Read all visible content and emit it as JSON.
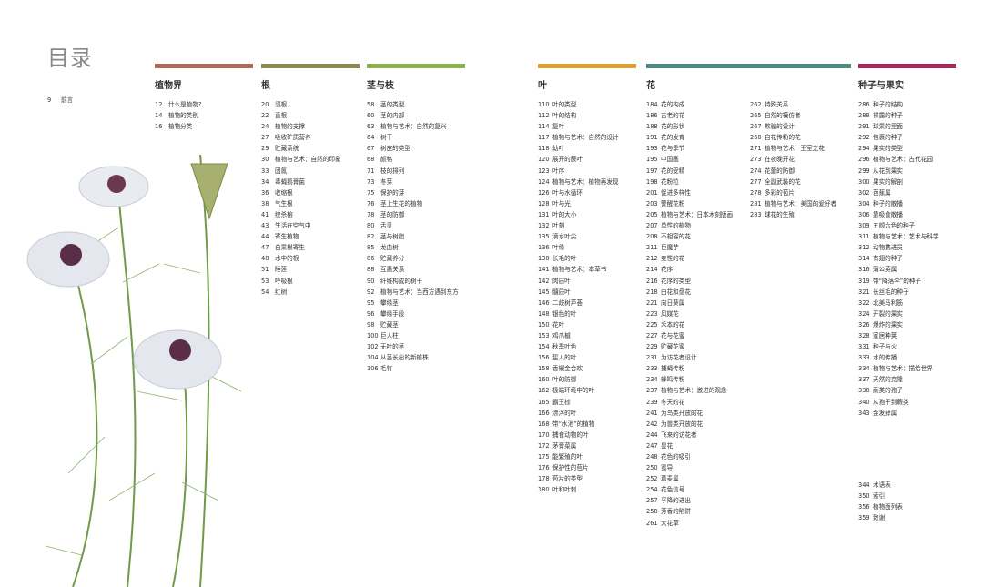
{
  "title": "目录",
  "preface": [
    {
      "n": "9",
      "t": "前言"
    }
  ],
  "sections": [
    {
      "key": "kingdom",
      "title": "植物界",
      "color": "#b06a58",
      "entries": [
        [
          "12",
          "什么是植物?"
        ],
        [
          "14",
          "植物的类别"
        ],
        [
          "16",
          "植物分类"
        ]
      ]
    },
    {
      "key": "roots",
      "title": "根",
      "color": "#8a8a4e",
      "entries": [
        [
          "20",
          "须根"
        ],
        [
          "22",
          "直根"
        ],
        [
          "24",
          "植物的支撑"
        ],
        [
          "27",
          "吸收矿质营养"
        ],
        [
          "29",
          "贮藏系统"
        ],
        [
          "30",
          "植物与艺术：自然的印象"
        ],
        [
          "33",
          "固氮"
        ],
        [
          "34",
          "毒蝇鹅膏菌"
        ],
        [
          "36",
          "收缩根"
        ],
        [
          "38",
          "气生根"
        ],
        [
          "41",
          "绞杀榕"
        ],
        [
          "43",
          "生活在空气中"
        ],
        [
          "44",
          "寄生植物"
        ],
        [
          "47",
          "白果槲寄生"
        ],
        [
          "48",
          "水中的根"
        ],
        [
          "51",
          "睡莲"
        ],
        [
          "53",
          "呼吸根"
        ],
        [
          "54",
          "红树"
        ]
      ]
    },
    {
      "key": "stems",
      "title": "茎与枝",
      "color": "#8cb24a",
      "entries": [
        [
          "58",
          "茎的类型"
        ],
        [
          "60",
          "茎的内部"
        ],
        [
          "63",
          "植物与艺术：自然的复兴"
        ],
        [
          "64",
          "树干"
        ],
        [
          "67",
          "树皮的类型"
        ],
        [
          "68",
          "颜格"
        ],
        [
          "71",
          "枝的排列"
        ],
        [
          "73",
          "冬芽"
        ],
        [
          "75",
          "保护的芽"
        ],
        [
          "76",
          "茎上生花的植物"
        ],
        [
          "78",
          "茎的防御"
        ],
        [
          "80",
          "舌贝"
        ],
        [
          "82",
          "茎与树脂"
        ],
        [
          "85",
          "龙血树"
        ],
        [
          "86",
          "贮藏养分"
        ],
        [
          "88",
          "互惠关系"
        ],
        [
          "90",
          "纤维构成的树干"
        ],
        [
          "92",
          "植物与艺术：当西方遇到东方"
        ],
        [
          "95",
          "攀缘茎"
        ],
        [
          "96",
          "攀缘手段"
        ],
        [
          "98",
          "贮藏茎"
        ],
        [
          "100",
          "巨人柱"
        ],
        [
          "102",
          "无叶的茎"
        ],
        [
          "104",
          "从茎长出的新植株"
        ],
        [
          "106",
          "毛竹"
        ]
      ]
    },
    {
      "key": "leaves",
      "title": "叶",
      "color": "#e0a030",
      "entries": [
        [
          "110",
          "叶的类型"
        ],
        [
          "112",
          "叶的结构"
        ],
        [
          "114",
          "复叶"
        ],
        [
          "117",
          "植物与艺术：自然的设计"
        ],
        [
          "118",
          "幼叶"
        ],
        [
          "120",
          "展开的蕨叶"
        ],
        [
          "123",
          "叶序"
        ],
        [
          "124",
          "植物与艺术：植物再发现"
        ],
        [
          "126",
          "叶与水循环"
        ],
        [
          "128",
          "叶与光"
        ],
        [
          "131",
          "叶的大小"
        ],
        [
          "132",
          "叶刻"
        ],
        [
          "135",
          "滴水叶尖"
        ],
        [
          "136",
          "叶缘"
        ],
        [
          "138",
          "长毛的叶"
        ],
        [
          "141",
          "植物与艺术：本草书"
        ],
        [
          "142",
          "肉质叶"
        ],
        [
          "145",
          "髓质叶"
        ],
        [
          "146",
          "二歧树芦荟"
        ],
        [
          "148",
          "银色的叶"
        ],
        [
          "150",
          "花叶"
        ],
        [
          "153",
          "鸡爪槭"
        ],
        [
          "154",
          "秋季叶色"
        ],
        [
          "156",
          "蜇人的叶"
        ],
        [
          "158",
          "香椒金合欢"
        ],
        [
          "160",
          "叶的防御"
        ],
        [
          "162",
          "极端环境中的叶"
        ],
        [
          "165",
          "霸王棕"
        ],
        [
          "166",
          "漂浮的叶"
        ],
        [
          "168",
          "带“水池”的植物"
        ],
        [
          "170",
          "捕食动物的叶"
        ],
        [
          "172",
          "茅膏菜属"
        ],
        [
          "175",
          "能繁殖的叶"
        ],
        [
          "176",
          "保护性的苞片"
        ],
        [
          "178",
          "苞片的类型"
        ],
        [
          "180",
          "叶和叶刺"
        ]
      ]
    },
    {
      "key": "flowers",
      "title": "花",
      "color": "#4e8a80",
      "entries": [
        [
          "184",
          "花的构成"
        ],
        [
          "186",
          "古老的花"
        ],
        [
          "188",
          "花的形状"
        ],
        [
          "191",
          "花的发育"
        ],
        [
          "193",
          "花与季节"
        ],
        [
          "195",
          "中国画"
        ],
        [
          "197",
          "花的受精"
        ],
        [
          "198",
          "花粉粒"
        ],
        [
          "201",
          "促进多样性"
        ],
        [
          "203",
          "警醒花粉"
        ],
        [
          "205",
          "植物与艺术：日本木刻版画"
        ],
        [
          "207",
          "单性的植物"
        ],
        [
          "208",
          "不相容的花"
        ],
        [
          "211",
          "巨魔芋"
        ],
        [
          "212",
          "变性的花"
        ],
        [
          "214",
          "花序"
        ],
        [
          "216",
          "花序的类型"
        ],
        [
          "218",
          "由花和盘花"
        ],
        [
          "221",
          "向日葵属"
        ],
        [
          "223",
          "风媒花"
        ],
        [
          "225",
          "禾本的花"
        ],
        [
          "227",
          "花与花蜜"
        ],
        [
          "229",
          "贮藏花蜜"
        ],
        [
          "231",
          "为访花者设计"
        ],
        [
          "233",
          "捕蝇传粉"
        ],
        [
          "234",
          "蜂鸣传粉"
        ],
        [
          "237",
          "植物与艺术：激进的观念"
        ],
        [
          "239",
          "冬天的花"
        ],
        [
          "241",
          "为鸟类开放的花"
        ],
        [
          "242",
          "为兽类开放的花"
        ],
        [
          "244",
          "飞来的访花者"
        ],
        [
          "247",
          "昙花"
        ],
        [
          "248",
          "花色的吸引"
        ],
        [
          "250",
          "蜜导"
        ],
        [
          "252",
          "葛麦属"
        ],
        [
          "254",
          "花色信号"
        ],
        [
          "257",
          "孚降的进出"
        ],
        [
          "258",
          "芳香的陷阱"
        ],
        [
          "261",
          "大花草"
        ]
      ],
      "entries2": [
        [
          "262",
          "特殊关系"
        ],
        [
          "265",
          "自然的模仿者"
        ],
        [
          "267",
          "欺骗的设计"
        ],
        [
          "268",
          "自花传粉的花"
        ],
        [
          "271",
          "植物与艺术：王室之花"
        ],
        [
          "273",
          "在夜晚开花"
        ],
        [
          "274",
          "花蕾的防御"
        ],
        [
          "277",
          "全副武装的花"
        ],
        [
          "278",
          "多彩的苞片"
        ],
        [
          "281",
          "植物与艺术：美国的爱好者"
        ],
        [
          "283",
          "球花的生殖"
        ]
      ]
    },
    {
      "key": "seeds",
      "title": "种子与果实",
      "color": "#a8285a",
      "entries": [
        [
          "286",
          "种子的结构"
        ],
        [
          "288",
          "裸露的种子"
        ],
        [
          "291",
          "球果的里面"
        ],
        [
          "292",
          "包裹的种子"
        ],
        [
          "294",
          "果实的类型"
        ],
        [
          "296",
          "植物与艺术：古代花园"
        ],
        [
          "299",
          "从花到果实"
        ],
        [
          "300",
          "果实的解剖"
        ],
        [
          "302",
          "芭蕉属"
        ],
        [
          "304",
          "种子的散播"
        ],
        [
          "306",
          "靠吸食散播"
        ],
        [
          "309",
          "五颜六色的种子"
        ],
        [
          "311",
          "植物与艺术：艺术与科学"
        ],
        [
          "312",
          "动物携进员"
        ],
        [
          "314",
          "有翅的种子"
        ],
        [
          "316",
          "蒲公英属"
        ],
        [
          "319",
          "带“降落伞”的种子"
        ],
        [
          "321",
          "长丝毛的种子"
        ],
        [
          "322",
          "北美马利筋"
        ],
        [
          "324",
          "开裂的果实"
        ],
        [
          "326",
          "爆炸的果实"
        ],
        [
          "328",
          "家居种荚"
        ],
        [
          "331",
          "种子与火"
        ],
        [
          "333",
          "水的传播"
        ],
        [
          "334",
          "植物与艺术：描绘世界"
        ],
        [
          "337",
          "天然的克隆"
        ],
        [
          "338",
          "蕨类的孢子"
        ],
        [
          "340",
          "从孢子到蕨类"
        ],
        [
          "343",
          "金发藓属"
        ]
      ]
    }
  ],
  "back_matter": [
    [
      "344",
      "术语表"
    ],
    [
      "350",
      "索引"
    ],
    [
      "356",
      "植物面列表"
    ],
    [
      "359",
      "致谢"
    ]
  ]
}
